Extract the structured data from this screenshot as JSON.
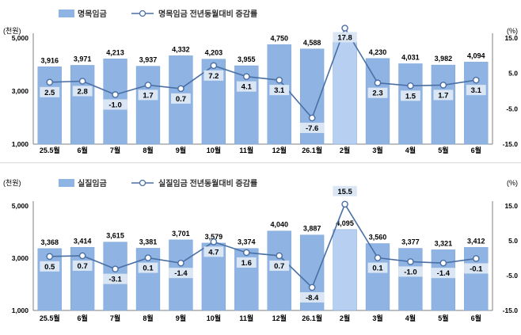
{
  "colors": {
    "bar": "#8fb4e3",
    "bar_edge": "#7aa3d6",
    "line": "#4a6fa5",
    "marker_fill": "#ffffff",
    "label_box": "#dbe6f4",
    "axis_text": "#000000",
    "highlight_bar": "#b7cff0"
  },
  "chart_data": [
    {
      "type": "bar",
      "legend": {
        "bar_label": "명목임금",
        "line_label": "명목임금 전년동월대비 증감률",
        "placement": "top-left"
      },
      "ylabel_left": "(천원)",
      "ylabel_right": "(%)",
      "ylim_left": [
        1000,
        5000
      ],
      "yticks_left": [
        1000,
        3000,
        5000
      ],
      "ytick_labels_left": [
        "1,000",
        "3,000",
        "5,000"
      ],
      "ylim_right": [
        -15,
        15
      ],
      "yticks_right": [
        -15,
        -5,
        5,
        15
      ],
      "ytick_labels_right": [
        "-15.0",
        "-5.0",
        "5.0",
        "15.0"
      ],
      "categories": [
        "25.5월",
        "6월",
        "7월",
        "8월",
        "9월",
        "10월",
        "11월",
        "12월",
        "26.1월",
        "2월",
        "3월",
        "4월",
        "5월",
        "6월"
      ],
      "series": [
        {
          "name": "명목임금",
          "axis": "left",
          "values": [
            3916,
            3971,
            4213,
            3937,
            4332,
            4203,
            3955,
            4750,
            4588,
            4849,
            4230,
            4031,
            3982,
            4094
          ],
          "labels": [
            "3,916",
            "3,971",
            "4,213",
            "3,937",
            "4,332",
            "4,203",
            "3,955",
            "4,750",
            "4,588",
            "4,849",
            "4,230",
            "4,031",
            "3,982",
            "4,094"
          ]
        },
        {
          "name": "명목임금 전년동월대비 증감률",
          "axis": "right",
          "values": [
            2.5,
            2.8,
            -1.0,
            1.7,
            0.7,
            7.2,
            4.1,
            3.1,
            -7.6,
            17.8,
            2.3,
            1.5,
            1.7,
            3.1
          ],
          "labels": [
            "2.5",
            "2.8",
            "-1.0",
            "1.7",
            "0.7",
            "7.2",
            "4.1",
            "3.1",
            "-7.6",
            "17.8",
            "2.3",
            "1.5",
            "1.7",
            "3.1"
          ]
        }
      ]
    },
    {
      "type": "bar",
      "legend": {
        "bar_label": "실질임금",
        "line_label": "실질임금 전년동월대비 증감률",
        "placement": "top-left"
      },
      "ylabel_left": "(천원)",
      "ylabel_right": "(%)",
      "ylim_left": [
        1000,
        5000
      ],
      "yticks_left": [
        1000,
        3000,
        5000
      ],
      "ytick_labels_left": [
        "1,000",
        "3,000",
        "5,000"
      ],
      "ylim_right": [
        -15,
        15
      ],
      "yticks_right": [
        -15,
        -5,
        5,
        15
      ],
      "ytick_labels_right": [
        "-15.0",
        "-5.0",
        "5.0",
        "15.0"
      ],
      "categories": [
        "25.5월",
        "6월",
        "7월",
        "8월",
        "9월",
        "10월",
        "11월",
        "12월",
        "26.1월",
        "2월",
        "3월",
        "4월",
        "5월",
        "6월"
      ],
      "series": [
        {
          "name": "실질임금",
          "axis": "left",
          "values": [
            3368,
            3414,
            3615,
            3381,
            3701,
            3579,
            3374,
            4040,
            3887,
            4095,
            3560,
            3377,
            3321,
            3412
          ],
          "labels": [
            "3,368",
            "3,414",
            "3,615",
            "3,381",
            "3,701",
            "3,579",
            "3,374",
            "4,040",
            "3,887",
            "4,095",
            "3,560",
            "3,377",
            "3,321",
            "3,412"
          ]
        },
        {
          "name": "실질임금 전년동월대비 증감률",
          "axis": "right",
          "values": [
            0.5,
            0.7,
            -3.1,
            0.1,
            -1.4,
            4.7,
            1.6,
            0.7,
            -8.4,
            15.5,
            0.1,
            -1.0,
            -1.4,
            -0.1
          ],
          "labels": [
            "0.5",
            "0.7",
            "-3.1",
            "0.1",
            "-1.4",
            "4.7",
            "1.6",
            "0.7",
            "-8.4",
            "15.5",
            "0.1",
            "-1.0",
            "-1.4",
            "-0.1"
          ]
        }
      ]
    }
  ]
}
